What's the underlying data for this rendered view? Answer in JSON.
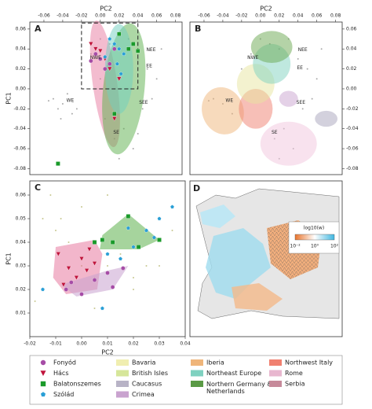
{
  "chart_data": [
    {
      "type": "scatter",
      "label": "A",
      "xlabel": "PC2",
      "ylabel": "PC1",
      "xaxis": "top",
      "yaxis": "left",
      "xlim": [
        -0.075,
        0.087
      ],
      "ylim": [
        -0.086,
        0.067
      ],
      "xticks": [
        -0.06,
        -0.04,
        -0.02,
        {
          "value": 0,
          "label": "0.00"
        },
        0.02,
        0.04,
        0.06,
        0.08
      ],
      "yticks": [
        0.06,
        0.04,
        0.02,
        {
          "value": 0,
          "label": "0.00"
        },
        -0.02,
        -0.04,
        -0.06,
        -0.08
      ],
      "zoom_box": true,
      "regions": [
        {
          "color": "#e87aa0",
          "cx": 0.005,
          "cy": 0.005,
          "rx": 0.013,
          "ry": 0.064,
          "angle": -8
        },
        {
          "color": "#5cb04c",
          "cx": 0.025,
          "cy": 0.0,
          "rx": 0.022,
          "ry": 0.066,
          "angle": 6
        },
        {
          "color": "#6fcfc0",
          "cx": 0.02,
          "cy": 0.02,
          "rx": 0.015,
          "ry": 0.045,
          "angle": 0
        }
      ],
      "background": {
        "color": "#aaaaaa",
        "x": [
          -0.05,
          -0.045,
          -0.04,
          -0.035,
          -0.03,
          -0.042,
          -0.055,
          -0.025,
          -0.01,
          0.0,
          0.01,
          0.02,
          0.03,
          0.04,
          0.05,
          0.06,
          0.005,
          0.015,
          0.025,
          0.035,
          0.045,
          0.03,
          0.0,
          -0.02,
          0.02,
          0.04,
          0.065,
          0.055
        ],
        "y": [
          -0.01,
          -0.02,
          -0.015,
          -0.005,
          -0.025,
          -0.03,
          -0.012,
          -0.02,
          0.035,
          0.05,
          0.045,
          0.04,
          0.05,
          0.03,
          0.02,
          0.01,
          -0.03,
          -0.05,
          -0.04,
          -0.06,
          -0.02,
          0.0,
          0.01,
          0.02,
          -0.07,
          -0.045,
          0.04,
          -0.01
        ]
      },
      "series": [
        {
          "color": "#a64ca6",
          "marker": "circle",
          "x": [
            -0.005,
            0.0,
            0.01,
            0.005,
            0.015,
            -0.01
          ],
          "y": [
            0.035,
            0.03,
            0.025,
            0.02,
            0.04,
            0.028
          ]
        },
        {
          "color": "#c0143c",
          "marker": "triangle",
          "x": [
            -0.01,
            -0.005,
            0.0,
            0.01,
            0.02,
            0.015,
            0.005
          ],
          "y": [
            0.045,
            0.04,
            0.038,
            0.02,
            0.01,
            -0.03,
            0.03
          ]
        },
        {
          "color": "#1a9a2a",
          "marker": "square",
          "x": [
            0.03,
            0.035,
            0.04,
            0.02,
            -0.045,
            0.015
          ],
          "y": [
            0.04,
            0.045,
            0.038,
            0.055,
            -0.075,
            -0.025
          ]
        },
        {
          "color": "#2a9fd6",
          "marker": "pentagon",
          "x": [
            0.01,
            0.015,
            0.02,
            0.025,
            0.005,
            0.018,
            0.022
          ],
          "y": [
            0.05,
            0.045,
            0.04,
            0.035,
            0.032,
            0.025,
            0.015
          ]
        }
      ],
      "annotations": [
        {
          "text": "NEE",
          "x": 0.054,
          "y": 0.039
        },
        {
          "text": "NWE",
          "x": -0.005,
          "y": 0.031
        },
        {
          "text": "EE",
          "x": 0.052,
          "y": 0.023
        },
        {
          "text": "WE",
          "x": -0.032,
          "y": -0.012
        },
        {
          "text": "SEE",
          "x": 0.046,
          "y": -0.014
        },
        {
          "text": "SE",
          "x": 0.017,
          "y": -0.044
        }
      ]
    },
    {
      "type": "scatter",
      "label": "B",
      "xlabel": "PC2",
      "xaxis": "top",
      "yaxis": "right",
      "xlim": [
        -0.075,
        0.087
      ],
      "ylim": [
        -0.086,
        0.067
      ],
      "xticks": [
        -0.06,
        -0.04,
        -0.02,
        {
          "value": 0,
          "label": "0.00"
        },
        0.02,
        0.04,
        0.06,
        0.08
      ],
      "yticks": [
        0.06,
        0.04,
        0.02,
        {
          "value": 0,
          "label": "0.00"
        },
        -0.02,
        -0.04,
        -0.06,
        -0.08
      ],
      "regions": [
        {
          "color": "#f2c6de",
          "cx": 0.03,
          "cy": -0.055,
          "rx": 0.03,
          "ry": 0.022,
          "angle": 0
        },
        {
          "color": "#efb57a",
          "cx": -0.04,
          "cy": -0.022,
          "rx": 0.022,
          "ry": 0.024,
          "angle": -20
        },
        {
          "color": "#f08070",
          "cx": -0.005,
          "cy": -0.02,
          "rx": 0.018,
          "ry": 0.02,
          "angle": 0
        },
        {
          "color": "#e8e6a0",
          "cx": -0.005,
          "cy": 0.005,
          "rx": 0.02,
          "ry": 0.02,
          "angle": 0
        },
        {
          "color": "#7fd1c0",
          "cx": 0.012,
          "cy": 0.025,
          "rx": 0.02,
          "ry": 0.02,
          "angle": 0
        },
        {
          "color": "#6aa84f",
          "cx": 0.012,
          "cy": 0.042,
          "rx": 0.022,
          "ry": 0.016,
          "angle": 0
        },
        {
          "color": "#a8a3bc",
          "cx": 0.07,
          "cy": -0.03,
          "rx": 0.012,
          "ry": 0.008,
          "angle": 0
        },
        {
          "color": "#c9a3cf",
          "cx": 0.03,
          "cy": -0.01,
          "rx": 0.01,
          "ry": 0.008,
          "angle": 0
        }
      ],
      "background": {
        "color": "#aaaaaa",
        "x": [
          -0.05,
          -0.04,
          -0.03,
          -0.055,
          -0.01,
          0.0,
          0.01,
          0.02,
          0.03,
          0.04,
          0.05,
          0.06,
          0.015,
          0.025,
          0.035,
          0.045,
          -0.02,
          0.02,
          0.065,
          0.055
        ],
        "y": [
          -0.01,
          -0.015,
          -0.025,
          -0.012,
          0.035,
          0.05,
          0.045,
          0.04,
          0.05,
          0.03,
          0.02,
          0.01,
          -0.05,
          -0.04,
          -0.06,
          -0.02,
          0.02,
          -0.07,
          0.04,
          -0.01
        ]
      },
      "series": [],
      "annotations": [
        {
          "text": "NEE",
          "x": 0.045,
          "y": 0.039
        },
        {
          "text": "NWE",
          "x": -0.008,
          "y": 0.031
        },
        {
          "text": "EE",
          "x": 0.042,
          "y": 0.021
        },
        {
          "text": "WE",
          "x": -0.033,
          "y": -0.012
        },
        {
          "text": "SEE",
          "x": 0.043,
          "y": -0.014
        },
        {
          "text": "SE",
          "x": 0.015,
          "y": -0.044
        }
      ]
    },
    {
      "type": "scatter",
      "label": "C",
      "xlabel": "PC2",
      "ylabel": "PC1",
      "xaxis": "bottom",
      "yaxis": "left",
      "xlim": [
        -0.02,
        0.04
      ],
      "ylim": [
        0.0,
        0.066
      ],
      "xticks": [
        -0.02,
        -0.01,
        {
          "value": 0,
          "label": "0.00"
        },
        0.01,
        0.02,
        0.03,
        0.04
      ],
      "yticks": [
        0.01,
        0.02,
        0.03,
        0.04,
        0.05,
        0.06
      ],
      "hulls": [
        {
          "color": "#5cb04c",
          "x": [
            0.008,
            0.018,
            0.03,
            0.022,
            0.007
          ],
          "y": [
            0.043,
            0.052,
            0.041,
            0.037,
            0.037
          ]
        },
        {
          "color": "#e87aa0",
          "x": [
            -0.01,
            0.005,
            0.008,
            0.006,
            -0.006,
            -0.011
          ],
          "y": [
            0.038,
            0.041,
            0.035,
            0.02,
            0.018,
            0.025
          ]
        },
        {
          "color": "#c9a3cf",
          "x": [
            -0.008,
            0.01,
            0.018,
            0.012,
            -0.002
          ],
          "y": [
            0.022,
            0.028,
            0.03,
            0.02,
            0.017
          ]
        }
      ],
      "background": {
        "color": "#c8c890",
        "x": [
          -0.015,
          -0.01,
          -0.005,
          0.0,
          0.005,
          0.01,
          0.015,
          0.02,
          0.025,
          -0.012,
          0.0,
          0.01,
          0.02,
          -0.018,
          0.03,
          0.035,
          0.005,
          -0.008
        ],
        "y": [
          0.05,
          0.045,
          0.04,
          0.03,
          0.025,
          0.03,
          0.035,
          0.025,
          0.03,
          0.06,
          0.055,
          0.06,
          0.02,
          0.015,
          0.03,
          0.045,
          0.012,
          0.05
        ]
      },
      "series": [
        {
          "color": "#a64ca6",
          "marker": "circle",
          "x": [
            -0.006,
            0.0,
            0.005,
            0.01,
            0.016,
            0.012,
            -0.004
          ],
          "y": [
            0.02,
            0.018,
            0.024,
            0.027,
            0.029,
            0.021,
            0.023
          ]
        },
        {
          "color": "#c0143c",
          "marker": "triangle",
          "x": [
            -0.009,
            -0.005,
            0.0,
            0.003,
            0.005,
            -0.002,
            0.002,
            -0.007
          ],
          "y": [
            0.035,
            0.029,
            0.033,
            0.037,
            0.031,
            0.025,
            0.028,
            0.022
          ]
        },
        {
          "color": "#1a9a2a",
          "marker": "square",
          "x": [
            0.008,
            0.018,
            0.03,
            0.022,
            0.012,
            0.005
          ],
          "y": [
            0.041,
            0.051,
            0.041,
            0.038,
            0.04,
            0.04
          ]
        },
        {
          "color": "#2a9fd6",
          "marker": "pentagon",
          "x": [
            0.01,
            0.015,
            0.02,
            0.025,
            0.018,
            0.03,
            0.035,
            0.008,
            0.028,
            -0.015
          ],
          "y": [
            0.035,
            0.033,
            0.038,
            0.045,
            0.046,
            0.05,
            0.055,
            0.012,
            0.042,
            0.02
          ]
        }
      ],
      "annotations": []
    }
  ],
  "map": {
    "label": "D",
    "colorbar_title": "log10(w)",
    "colorbar_ticks": [
      "10⁻²",
      "10⁰",
      "10²"
    ]
  },
  "legend": [
    {
      "name": "Fonyód",
      "color": "#a64ca6",
      "marker": "circle"
    },
    {
      "name": "Hács",
      "color": "#c0143c",
      "marker": "triangle"
    },
    {
      "name": "Balatonszemes",
      "color": "#1a9a2a",
      "marker": "square"
    },
    {
      "name": "Szólád",
      "color": "#2a9fd6",
      "marker": "pentagon"
    },
    {
      "name": "Bavaria",
      "color": "#f0eeb0"
    },
    {
      "name": "British Isles",
      "color": "#d6e69a"
    },
    {
      "name": "Caucasus",
      "color": "#b8b3c6"
    },
    {
      "name": "Crimea",
      "color": "#c9a3cf"
    },
    {
      "name": "Iberia",
      "color": "#efb57a"
    },
    {
      "name": "Northeast Europe",
      "color": "#7fd1c0"
    },
    {
      "name": "Northern Germany & Netherlands",
      "color": "#5a9a45"
    },
    {
      "name": "Northwest Italy",
      "color": "#f08070"
    },
    {
      "name": "Rome",
      "color": "#e8b7cf"
    },
    {
      "name": "Serbia",
      "color": "#c68a9a"
    }
  ]
}
